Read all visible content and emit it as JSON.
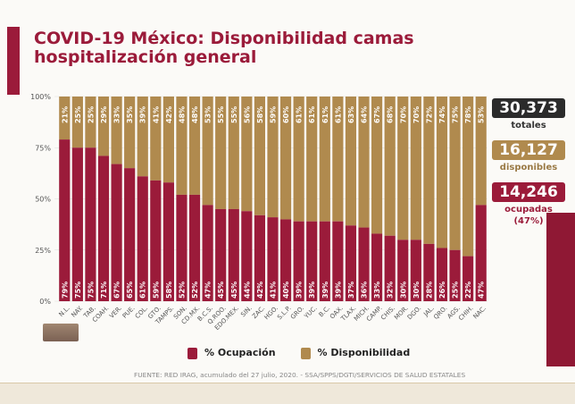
{
  "title": "COVID-19 México: Disponibilidad camas hospitalización general",
  "stats": {
    "totales": {
      "value": "30,373",
      "label": "totales",
      "color": "#2b2b2b"
    },
    "disponibles": {
      "value": "16,127",
      "label": "disponibles",
      "color": "#b08a4e"
    },
    "ocupadas": {
      "value": "14,246",
      "label": "ocupadas",
      "pct": "(47%)",
      "color": "#9b1b3a"
    }
  },
  "legend": {
    "ocupacion": "% Ocupación",
    "disponibilidad": "% Disponibilidad"
  },
  "source": "FUENTE: RED IRAG, acumulado del 27 julio, 2020. - SSA/SPPS/DGTI/SERVICIOS DE SALUD ESTATALES",
  "chart_data": {
    "type": "bar",
    "stacked": true,
    "categories": [
      "N.L.",
      "NAY.",
      "TAB.",
      "COAH.",
      "VER.",
      "PUE.",
      "COL.",
      "GTO.",
      "TAMPS.",
      "SON.",
      "CD.MX.",
      "B.C.S.",
      "Q.ROO.",
      "EDO.MEX.",
      "SIN.",
      "ZAC.",
      "HGO.",
      "S.L.P.",
      "GRO.",
      "YUC.",
      "B.C.",
      "OAX.",
      "TLAX.",
      "MICH.",
      "CAMP.",
      "CHIS.",
      "MOR.",
      "DGO.",
      "JAL.",
      "QRO.",
      "AGS.",
      "CHIH.",
      "NAC."
    ],
    "series": [
      {
        "name": "% Ocupación",
        "color": "#9b1b3a",
        "values": [
          79,
          75,
          75,
          71,
          67,
          65,
          61,
          59,
          58,
          52,
          52,
          47,
          45,
          45,
          44,
          42,
          41,
          40,
          39,
          39,
          39,
          39,
          37,
          36,
          33,
          32,
          30,
          30,
          28,
          26,
          25,
          22,
          47
        ]
      },
      {
        "name": "% Disponibilidad",
        "color": "#b08a4e",
        "values": [
          21,
          25,
          25,
          29,
          33,
          35,
          39,
          41,
          42,
          48,
          48,
          53,
          55,
          55,
          56,
          58,
          59,
          60,
          61,
          61,
          61,
          61,
          63,
          64,
          67,
          68,
          70,
          70,
          72,
          74,
          75,
          78,
          53
        ]
      }
    ],
    "yticks": [
      "0%",
      "25%",
      "50%",
      "75%",
      "100%"
    ],
    "ylim": [
      0,
      100
    ],
    "legend_position": "bottom"
  }
}
